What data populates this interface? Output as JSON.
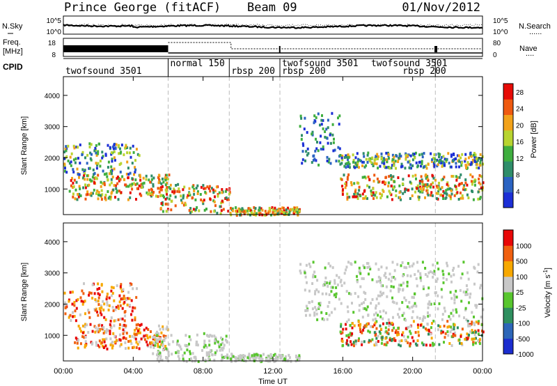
{
  "header": {
    "station": "Prince George (fitACF)",
    "beam": "Beam 09",
    "date": "01/Nov/2012"
  },
  "noise_panel": {
    "left_label": "N.Sky",
    "right_label": "N.Search",
    "right_dots": "......",
    "y_ticks": [
      "10^5",
      "10^0"
    ]
  },
  "freq_panel": {
    "left_label_line1": "Freq.",
    "left_label_line2": "[MHz]",
    "right_label": "Nave",
    "right_dots": "....",
    "left_ticks": [
      "18",
      "8"
    ],
    "right_ticks": [
      "80",
      "0"
    ]
  },
  "cpid": {
    "label": "CPID",
    "segments": [
      {
        "name": "twofsound 3501",
        "start_hour": 0.0,
        "row": 1
      },
      {
        "name": "normal 150",
        "start_hour": 6.0,
        "row": 0
      },
      {
        "name": "rbsp 200",
        "start_hour": 9.5,
        "row": 1
      },
      {
        "name": "twofsound 3501",
        "start_hour": 12.4,
        "row": 0
      },
      {
        "name": "rbsp 200",
        "start_hour": 12.4,
        "row": 1
      },
      {
        "name": "twofsound 3501",
        "start_hour": 17.5,
        "row": 0
      },
      {
        "name": "rbsp 200",
        "start_hour": 19.3,
        "row": 1
      }
    ],
    "boundaries_hour": [
      6.0,
      9.5,
      12.4,
      21.3
    ]
  },
  "chart_data": [
    {
      "type": "heatmap",
      "name": "power",
      "ylabel": "Slant Range [km]",
      "ylim": [
        180,
        4600
      ],
      "yticks": [
        1000,
        2000,
        3000,
        4000
      ],
      "xlim_hours": [
        0,
        24
      ],
      "colorbar": {
        "label": "Power [dB]",
        "range": [
          0,
          30
        ],
        "ticks": [
          "4",
          "8",
          "12",
          "16",
          "20",
          "24",
          "28"
        ],
        "colors": [
          "#1c2fd6",
          "#2b63c2",
          "#2f8d6a",
          "#3fae3f",
          "#b8d430",
          "#f2a21a",
          "#ef5a10",
          "#e60b06"
        ]
      },
      "echo_regions": [
        {
          "t0": 0.0,
          "t1": 4.3,
          "r0": 1500,
          "r1": 2500,
          "level": "mid"
        },
        {
          "t0": 0.3,
          "t1": 6.0,
          "r0": 700,
          "r1": 1500,
          "level": "high"
        },
        {
          "t0": 5.5,
          "t1": 9.5,
          "r0": 250,
          "r1": 1200,
          "level": "high"
        },
        {
          "t0": 9.5,
          "t1": 13.5,
          "r0": 200,
          "r1": 450,
          "level": "high"
        },
        {
          "t0": 13.5,
          "t1": 15.8,
          "r0": 1800,
          "r1": 3500,
          "level": "low"
        },
        {
          "t0": 15.8,
          "t1": 24.0,
          "r0": 1700,
          "r1": 2200,
          "level": "mid"
        },
        {
          "t0": 15.8,
          "t1": 24.0,
          "r0": 700,
          "r1": 1500,
          "level": "high"
        }
      ]
    },
    {
      "type": "heatmap",
      "name": "velocity",
      "xlabel": "Time UT",
      "ylabel": "Slant Range [km]",
      "ylim": [
        180,
        4600
      ],
      "yticks": [
        1000,
        2000,
        3000,
        4000
      ],
      "xlim_hours": [
        0,
        24
      ],
      "xticks": [
        "00:00",
        "04:00",
        "08:00",
        "12:00",
        "16:00",
        "20:00",
        "00:00"
      ],
      "colorbar": {
        "label": "Velocity [m s^-1]",
        "ticks": [
          "1000",
          "500",
          "100",
          "25",
          "-25",
          "-100",
          "-500",
          "-1000"
        ],
        "colors": [
          "#1b2dcf",
          "#2d66b8",
          "#2f8f5f",
          "#58c62e",
          "#c8c8c8",
          "#f7a800",
          "#f06010",
          "#e80707"
        ]
      },
      "echo_regions": [
        {
          "t0": 0.0,
          "t1": 4.2,
          "r0": 1500,
          "r1": 2700,
          "level": "away"
        },
        {
          "t0": 0.5,
          "t1": 6.0,
          "r0": 600,
          "r1": 1400,
          "level": "away"
        },
        {
          "t0": 5.0,
          "t1": 9.5,
          "r0": 200,
          "r1": 1100,
          "level": "ground"
        },
        {
          "t0": 9.5,
          "t1": 13.5,
          "r0": 200,
          "r1": 450,
          "level": "ground"
        },
        {
          "t0": 13.5,
          "t1": 24.0,
          "r0": 1500,
          "r1": 3400,
          "level": "ground"
        },
        {
          "t0": 15.8,
          "t1": 24.0,
          "r0": 700,
          "r1": 1500,
          "level": "mixed"
        }
      ]
    }
  ]
}
